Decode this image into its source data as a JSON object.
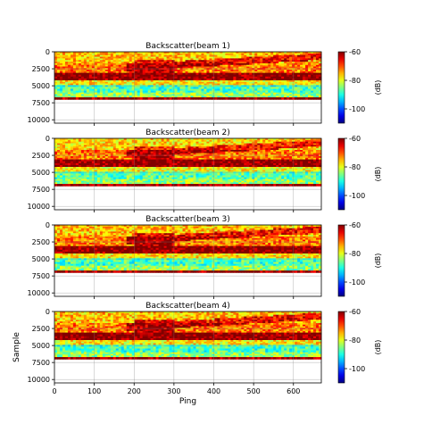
{
  "chart_data": [
    {
      "type": "heatmap",
      "title": "Backscatter(beam 1)",
      "xlabel": "",
      "ylabel": "",
      "xlim": [
        0,
        670
      ],
      "ylim": [
        10500,
        0
      ],
      "xticks": [],
      "yticks": [
        "0",
        "2500",
        "5000",
        "7500",
        "10000"
      ],
      "ytick_values": [
        0,
        2500,
        5000,
        7500,
        10000
      ],
      "grid": true,
      "colorbar": {
        "label": "(dB)",
        "ticks": [
          "-60",
          "-80",
          "-100"
        ],
        "tick_values": [
          -60,
          -80,
          -100
        ],
        "range": [
          -110,
          -60
        ]
      },
      "layers": [
        {
          "from": 0,
          "to": 1700,
          "mean_db": -76
        },
        {
          "from": 1700,
          "to": 3100,
          "mean_db": -72
        },
        {
          "from": 3100,
          "to": 4200,
          "mean_db": -60
        },
        {
          "from": 4200,
          "to": 4900,
          "mean_db": -78
        },
        {
          "from": 4900,
          "to": 6000,
          "mean_db": -88
        },
        {
          "from": 6000,
          "to": 6700,
          "mean_db": -84
        },
        {
          "from": 6700,
          "to": 7000,
          "mean_db": -60
        },
        {
          "from": 7000,
          "to": 10500,
          "mean_db": null
        }
      ]
    },
    {
      "type": "heatmap",
      "title": "Backscatter(beam 2)",
      "xlabel": "",
      "ylabel": "",
      "xlim": [
        0,
        670
      ],
      "ylim": [
        10500,
        0
      ],
      "xticks": [],
      "yticks": [
        "0",
        "2500",
        "5000",
        "7500",
        "10000"
      ],
      "ytick_values": [
        0,
        2500,
        5000,
        7500,
        10000
      ],
      "grid": true,
      "colorbar": {
        "label": "(dB)",
        "ticks": [
          "-60",
          "-80",
          "-100"
        ],
        "tick_values": [
          -60,
          -80,
          -100
        ],
        "range": [
          -110,
          -60
        ]
      },
      "layers": [
        {
          "from": 0,
          "to": 1700,
          "mean_db": -77
        },
        {
          "from": 1700,
          "to": 3100,
          "mean_db": -72
        },
        {
          "from": 3100,
          "to": 4200,
          "mean_db": -60
        },
        {
          "from": 4200,
          "to": 4900,
          "mean_db": -79
        },
        {
          "from": 4900,
          "to": 6000,
          "mean_db": -87
        },
        {
          "from": 6000,
          "to": 6700,
          "mean_db": -84
        },
        {
          "from": 6700,
          "to": 7000,
          "mean_db": -60
        },
        {
          "from": 7000,
          "to": 10500,
          "mean_db": null
        }
      ]
    },
    {
      "type": "heatmap",
      "title": "Backscatter(beam 3)",
      "xlabel": "",
      "ylabel": "",
      "xlim": [
        0,
        670
      ],
      "ylim": [
        10500,
        0
      ],
      "xticks": [],
      "yticks": [
        "0",
        "2500",
        "5000",
        "7500",
        "10000"
      ],
      "ytick_values": [
        0,
        2500,
        5000,
        7500,
        10000
      ],
      "grid": true,
      "colorbar": {
        "label": "(dB)",
        "ticks": [
          "-60",
          "-80",
          "-100"
        ],
        "tick_values": [
          -60,
          -80,
          -100
        ],
        "range": [
          -110,
          -60
        ]
      },
      "layers": [
        {
          "from": 0,
          "to": 1700,
          "mean_db": -76
        },
        {
          "from": 1700,
          "to": 3100,
          "mean_db": -72
        },
        {
          "from": 3100,
          "to": 4200,
          "mean_db": -60
        },
        {
          "from": 4200,
          "to": 4900,
          "mean_db": -78
        },
        {
          "from": 4900,
          "to": 6000,
          "mean_db": -88
        },
        {
          "from": 6000,
          "to": 6700,
          "mean_db": -84
        },
        {
          "from": 6700,
          "to": 7000,
          "mean_db": -60
        },
        {
          "from": 7000,
          "to": 10500,
          "mean_db": null
        }
      ]
    },
    {
      "type": "heatmap",
      "title": "Backscatter(beam 4)",
      "xlabel": "Ping",
      "ylabel": "Sample",
      "xlim": [
        0,
        670
      ],
      "ylim": [
        10500,
        0
      ],
      "xticks": [
        "0",
        "100",
        "200",
        "300",
        "400",
        "500",
        "600"
      ],
      "xtick_values": [
        0,
        100,
        200,
        300,
        400,
        500,
        600
      ],
      "yticks": [
        "0",
        "2500",
        "5000",
        "7500",
        "10000"
      ],
      "ytick_values": [
        0,
        2500,
        5000,
        7500,
        10000
      ],
      "grid": true,
      "colorbar": {
        "label": "(dB)",
        "ticks": [
          "-60",
          "-80",
          "-100"
        ],
        "tick_values": [
          -60,
          -80,
          -100
        ],
        "range": [
          -110,
          -60
        ]
      },
      "layers": [
        {
          "from": 0,
          "to": 1700,
          "mean_db": -76
        },
        {
          "from": 1700,
          "to": 3100,
          "mean_db": -72
        },
        {
          "from": 3100,
          "to": 4200,
          "mean_db": -60
        },
        {
          "from": 4200,
          "to": 4900,
          "mean_db": -78
        },
        {
          "from": 4900,
          "to": 6000,
          "mean_db": -88
        },
        {
          "from": 6000,
          "to": 6700,
          "mean_db": -84
        },
        {
          "from": 6700,
          "to": 7000,
          "mean_db": -60
        },
        {
          "from": 7000,
          "to": 10500,
          "mean_db": null
        }
      ]
    }
  ],
  "colors": {
    "empty_background": "#ffffff",
    "grid": "#808080",
    "colormap": "jet"
  }
}
